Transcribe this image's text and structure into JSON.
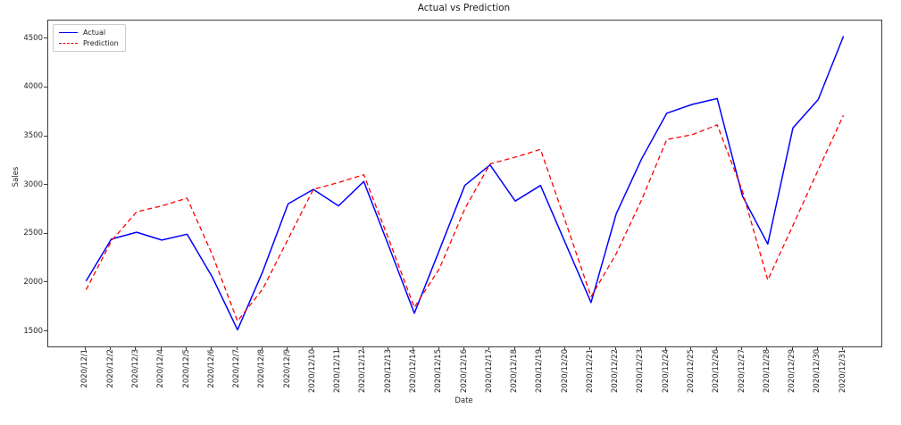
{
  "figure": {
    "title": "Actual vs Prediction",
    "x_axis_label": "Date",
    "y_axis_label": "Sales"
  },
  "legend": {
    "items": [
      {
        "label": "Actual"
      },
      {
        "label": "Prediction"
      }
    ]
  },
  "chart_data": {
    "type": "line",
    "title": "Actual vs Prediction",
    "xlabel": "Date",
    "ylabel": "Sales",
    "x": [
      "2020/12/1",
      "2020/12/2",
      "2020/12/3",
      "2020/12/4",
      "2020/12/5",
      "2020/12/6",
      "2020/12/7",
      "2020/12/8",
      "2020/12/9",
      "2020/12/10",
      "2020/12/11",
      "2020/12/12",
      "2020/12/13",
      "2020/12/14",
      "2020/12/15",
      "2020/12/16",
      "2020/12/17",
      "2020/12/18",
      "2020/12/19",
      "2020/12/20",
      "2020/12/21",
      "2020/12/22",
      "2020/12/23",
      "2020/12/24",
      "2020/12/25",
      "2020/12/26",
      "2020/12/27",
      "2020/12/28",
      "2020/12/29",
      "2020/12/30",
      "2020/12/31"
    ],
    "series": [
      {
        "name": "Actual",
        "color": "#0000ff",
        "style": "solid",
        "values": [
          2020,
          2450,
          2520,
          2440,
          2500,
          2060,
          1520,
          2120,
          2810,
          2960,
          2790,
          3040,
          2370,
          1690,
          2340,
          3000,
          3210,
          2840,
          3000,
          2400,
          1800,
          2710,
          3270,
          3740,
          3830,
          3890,
          2890,
          2400,
          3590,
          3880,
          4530
        ]
      },
      {
        "name": "Prediction",
        "color": "#ff0000",
        "style": "dashed",
        "values": [
          1930,
          2430,
          2730,
          2790,
          2870,
          2290,
          1610,
          1940,
          2450,
          2960,
          3030,
          3110,
          2440,
          1750,
          2150,
          2760,
          3220,
          3290,
          3370,
          2620,
          1860,
          2300,
          2850,
          3470,
          3520,
          3620,
          2940,
          2030,
          2590,
          3160,
          3720
        ]
      }
    ],
    "ylim": [
      1350,
      4690
    ],
    "yticks": [
      1500,
      2000,
      2500,
      3000,
      3500,
      4000,
      4500
    ],
    "grid": false,
    "legend_position": "upper left"
  }
}
